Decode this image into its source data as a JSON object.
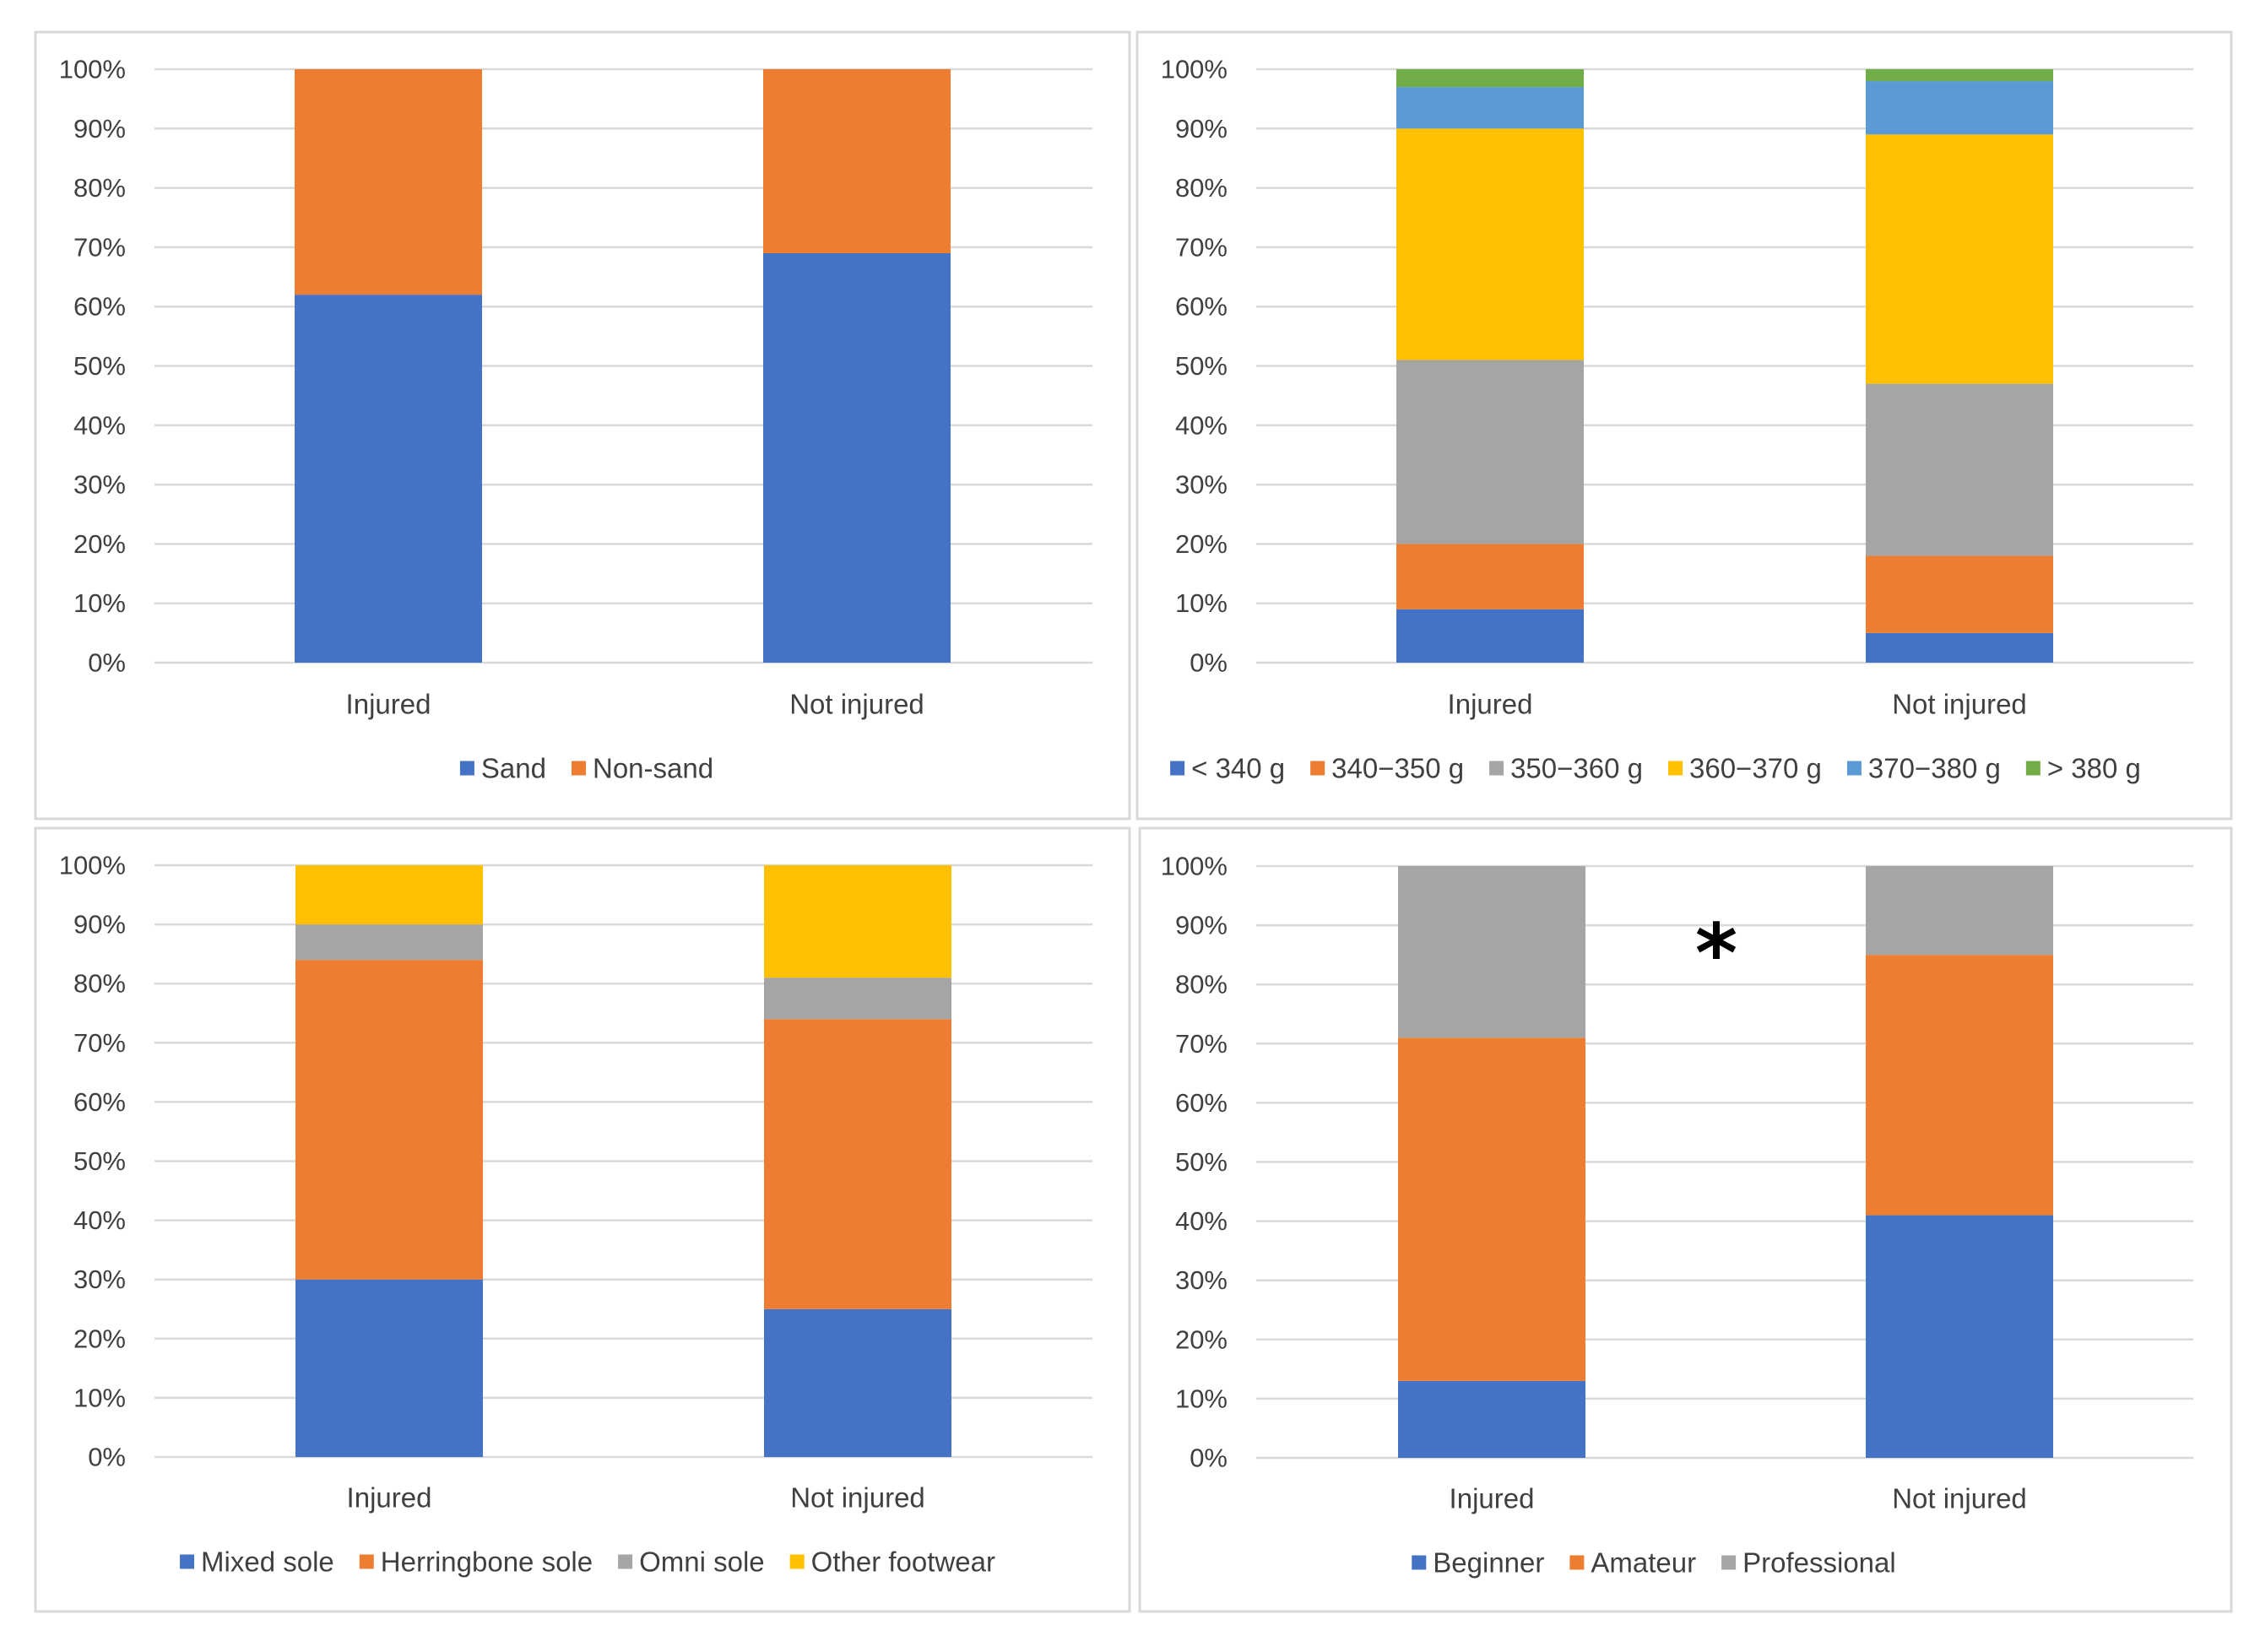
{
  "chart_data": [
    {
      "type": "bar",
      "stacked": true,
      "percent": true,
      "categories": [
        "Injured",
        "Not injured"
      ],
      "series": [
        {
          "name": "Sand",
          "color": "#4472c4",
          "values": [
            62,
            69
          ]
        },
        {
          "name": "Non-sand",
          "color": "#ed7d31",
          "values": [
            38,
            31
          ]
        }
      ],
      "ylim": [
        0,
        100
      ],
      "yticks": [
        "0%",
        "10%",
        "20%",
        "30%",
        "40%",
        "50%",
        "60%",
        "70%",
        "80%",
        "90%",
        "100%"
      ],
      "legend": "bottom",
      "grid": true,
      "annotation": ""
    },
    {
      "type": "bar",
      "stacked": true,
      "percent": true,
      "categories": [
        "Injured",
        "Not injured"
      ],
      "series": [
        {
          "name": "< 340 g",
          "color": "#4472c4",
          "values": [
            9,
            5
          ]
        },
        {
          "name": "340−350 g",
          "color": "#ed7d31",
          "values": [
            11,
            13
          ]
        },
        {
          "name": "350−360 g",
          "color": "#a5a5a5",
          "values": [
            31,
            29
          ]
        },
        {
          "name": "360−370 g",
          "color": "#ffc000",
          "values": [
            39,
            42
          ]
        },
        {
          "name": "370−380 g",
          "color": "#5b9bd5",
          "values": [
            7,
            9
          ]
        },
        {
          "name": "> 380 g",
          "color": "#70ad47",
          "values": [
            3,
            2
          ]
        }
      ],
      "ylim": [
        0,
        100
      ],
      "yticks": [
        "0%",
        "10%",
        "20%",
        "30%",
        "40%",
        "50%",
        "60%",
        "70%",
        "80%",
        "90%",
        "100%"
      ],
      "legend": "bottom",
      "grid": true,
      "annotation": ""
    },
    {
      "type": "bar",
      "stacked": true,
      "percent": true,
      "categories": [
        "Injured",
        "Not injured"
      ],
      "series": [
        {
          "name": "Mixed sole",
          "color": "#4472c4",
          "values": [
            30,
            25
          ]
        },
        {
          "name": "Herringbone sole",
          "color": "#ed7d31",
          "values": [
            54,
            49
          ]
        },
        {
          "name": "Omni sole",
          "color": "#a5a5a5",
          "values": [
            6,
            7
          ]
        },
        {
          "name": "Other footwear",
          "color": "#ffc000",
          "values": [
            10,
            19
          ]
        }
      ],
      "ylim": [
        0,
        100
      ],
      "yticks": [
        "0%",
        "10%",
        "20%",
        "30%",
        "40%",
        "50%",
        "60%",
        "70%",
        "80%",
        "90%",
        "100%"
      ],
      "legend": "bottom",
      "grid": true,
      "annotation": ""
    },
    {
      "type": "bar",
      "stacked": true,
      "percent": true,
      "categories": [
        "Injured",
        "Not injured"
      ],
      "series": [
        {
          "name": "Beginner",
          "color": "#4472c4",
          "values": [
            13,
            41
          ]
        },
        {
          "name": "Amateur",
          "color": "#ed7d31",
          "values": [
            58,
            44
          ]
        },
        {
          "name": "Professional",
          "color": "#a5a5a5",
          "values": [
            29,
            15
          ]
        }
      ],
      "ylim": [
        0,
        100
      ],
      "yticks": [
        "0%",
        "10%",
        "20%",
        "30%",
        "40%",
        "50%",
        "60%",
        "70%",
        "80%",
        "90%",
        "100%"
      ],
      "legend": "bottom",
      "grid": true,
      "annotation": "*"
    }
  ]
}
